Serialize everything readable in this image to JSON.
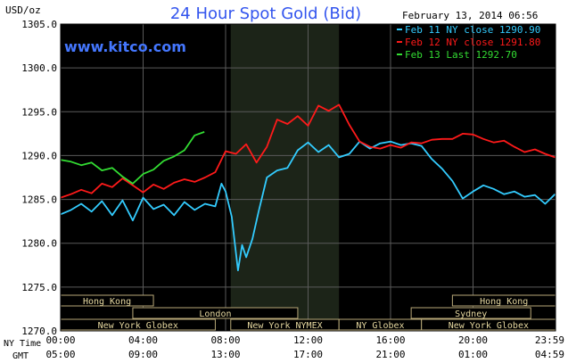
{
  "chart_data": {
    "type": "line",
    "title": "24 Hour Spot Gold (Bid)",
    "unit_label": "USD/oz",
    "watermark": "www.kitco.com",
    "date_stamp": "February 13, 2014 06:56",
    "ylim": [
      1270,
      1305
    ],
    "y_ticks": [
      "1305.0",
      "1300.0",
      "1295.0",
      "1290.0",
      "1285.0",
      "1280.0",
      "1275.0",
      "1270.0"
    ],
    "y_tick_values": [
      1305,
      1300,
      1295,
      1290,
      1285,
      1280,
      1275,
      1270
    ],
    "xlim": [
      0,
      24
    ],
    "ny_time_label": "NY Time",
    "gmt_label": "GMT",
    "ny_ticks": [
      "00:00",
      "04:00",
      "08:00",
      "12:00",
      "16:00",
      "20:00",
      "23:59"
    ],
    "gmt_ticks": [
      "05:00",
      "09:00",
      "13:00",
      "17:00",
      "21:00",
      "01:00",
      "04:59"
    ],
    "tick_hours": [
      0,
      4,
      8,
      12,
      16,
      20,
      23.98
    ],
    "nymex_shade": [
      8.25,
      13.5
    ],
    "legend": [
      {
        "label": "Feb 11 NY close 1290.90",
        "color": "#33ccff"
      },
      {
        "label": "Feb 12 NY close 1291.80",
        "color": "#ff1a1a"
      },
      {
        "label": "Feb 13 Last 1292.70",
        "color": "#33dd33"
      }
    ],
    "sessions": [
      {
        "label": "Hong Kong",
        "start": 0,
        "end": 4.5,
        "row": 0
      },
      {
        "label": "London",
        "start": 3.5,
        "end": 11.5,
        "row": 1
      },
      {
        "label": "New York Globex",
        "start": 0,
        "end": 7.5,
        "row": 2
      },
      {
        "label": "New York NYMEX",
        "start": 8.25,
        "end": 13.5,
        "row": 2
      },
      {
        "label": "NY Globex",
        "start": 13.5,
        "end": 17.5,
        "row": 2
      },
      {
        "label": "Hong Kong",
        "start": 19.0,
        "end": 24,
        "row": 0
      },
      {
        "label": "Sydney",
        "start": 17.0,
        "end": 22.8,
        "row": 1
      },
      {
        "label": "New York Globex",
        "start": 17.5,
        "end": 24,
        "row": 2
      }
    ],
    "series": [
      {
        "name": "Feb 11 NY close 1290.90",
        "color": "#33ccff",
        "x": [
          0,
          0.5,
          1,
          1.5,
          2,
          2.5,
          3,
          3.5,
          4,
          4.5,
          5,
          5.5,
          6,
          6.5,
          7,
          7.5,
          7.8,
          8.0,
          8.3,
          8.6,
          8.8,
          9.0,
          9.3,
          9.6,
          10.0,
          10.5,
          11,
          11.5,
          12,
          12.5,
          13,
          13.5,
          14,
          14.5,
          15,
          15.5,
          16,
          16.5,
          17,
          17.5,
          18,
          18.5,
          19,
          19.5,
          20,
          20.5,
          21,
          21.5,
          22,
          22.5,
          23,
          23.5,
          23.98
        ],
        "y": [
          1283.3,
          1283.8,
          1284.5,
          1283.6,
          1284.8,
          1283.2,
          1284.9,
          1282.6,
          1285.2,
          1283.9,
          1284.4,
          1283.2,
          1284.7,
          1283.8,
          1284.5,
          1284.2,
          1286.8,
          1285.9,
          1283.0,
          1276.9,
          1279.8,
          1278.4,
          1280.5,
          1283.6,
          1287.5,
          1288.3,
          1288.6,
          1290.6,
          1291.5,
          1290.4,
          1291.2,
          1289.8,
          1290.2,
          1291.6,
          1290.8,
          1291.4,
          1291.6,
          1291.2,
          1291.4,
          1291.1,
          1289.6,
          1288.5,
          1287.1,
          1285.1,
          1285.9,
          1286.6,
          1286.2,
          1285.6,
          1285.9,
          1285.3,
          1285.5,
          1284.5,
          1285.6
        ]
      },
      {
        "name": "Feb 12 NY close 1291.80",
        "color": "#ff1a1a",
        "x": [
          0,
          0.5,
          1,
          1.5,
          2,
          2.5,
          3,
          3.5,
          4,
          4.5,
          5,
          5.5,
          6,
          6.5,
          7,
          7.5,
          8.0,
          8.5,
          9.0,
          9.5,
          10.0,
          10.5,
          11,
          11.5,
          12,
          12.5,
          13,
          13.5,
          14,
          14.5,
          15,
          15.5,
          16,
          16.5,
          17,
          17.5,
          18,
          18.5,
          19,
          19.5,
          20,
          20.5,
          21,
          21.5,
          22,
          22.5,
          23,
          23.5,
          23.98
        ],
        "y": [
          1285.2,
          1285.6,
          1286.1,
          1285.7,
          1286.8,
          1286.4,
          1287.4,
          1286.6,
          1285.8,
          1286.7,
          1286.2,
          1286.9,
          1287.3,
          1287.0,
          1287.5,
          1288.1,
          1290.5,
          1290.2,
          1291.3,
          1289.2,
          1291.0,
          1294.1,
          1293.6,
          1294.5,
          1293.4,
          1295.7,
          1295.1,
          1295.8,
          1293.5,
          1291.6,
          1291.0,
          1290.8,
          1291.2,
          1290.9,
          1291.5,
          1291.4,
          1291.8,
          1291.9,
          1291.9,
          1292.5,
          1292.4,
          1291.9,
          1291.5,
          1291.7,
          1291.0,
          1290.4,
          1290.7,
          1290.2,
          1289.8
        ]
      },
      {
        "name": "Feb 13 Last 1292.70",
        "color": "#33dd33",
        "x": [
          0,
          0.5,
          1,
          1.5,
          2,
          2.5,
          3,
          3.5,
          4,
          4.5,
          5,
          5.5,
          6,
          6.5,
          6.97
        ],
        "y": [
          1289.5,
          1289.3,
          1288.9,
          1289.2,
          1288.3,
          1288.6,
          1287.6,
          1286.8,
          1287.9,
          1288.4,
          1289.4,
          1289.9,
          1290.6,
          1292.3,
          1292.7
        ]
      }
    ]
  }
}
